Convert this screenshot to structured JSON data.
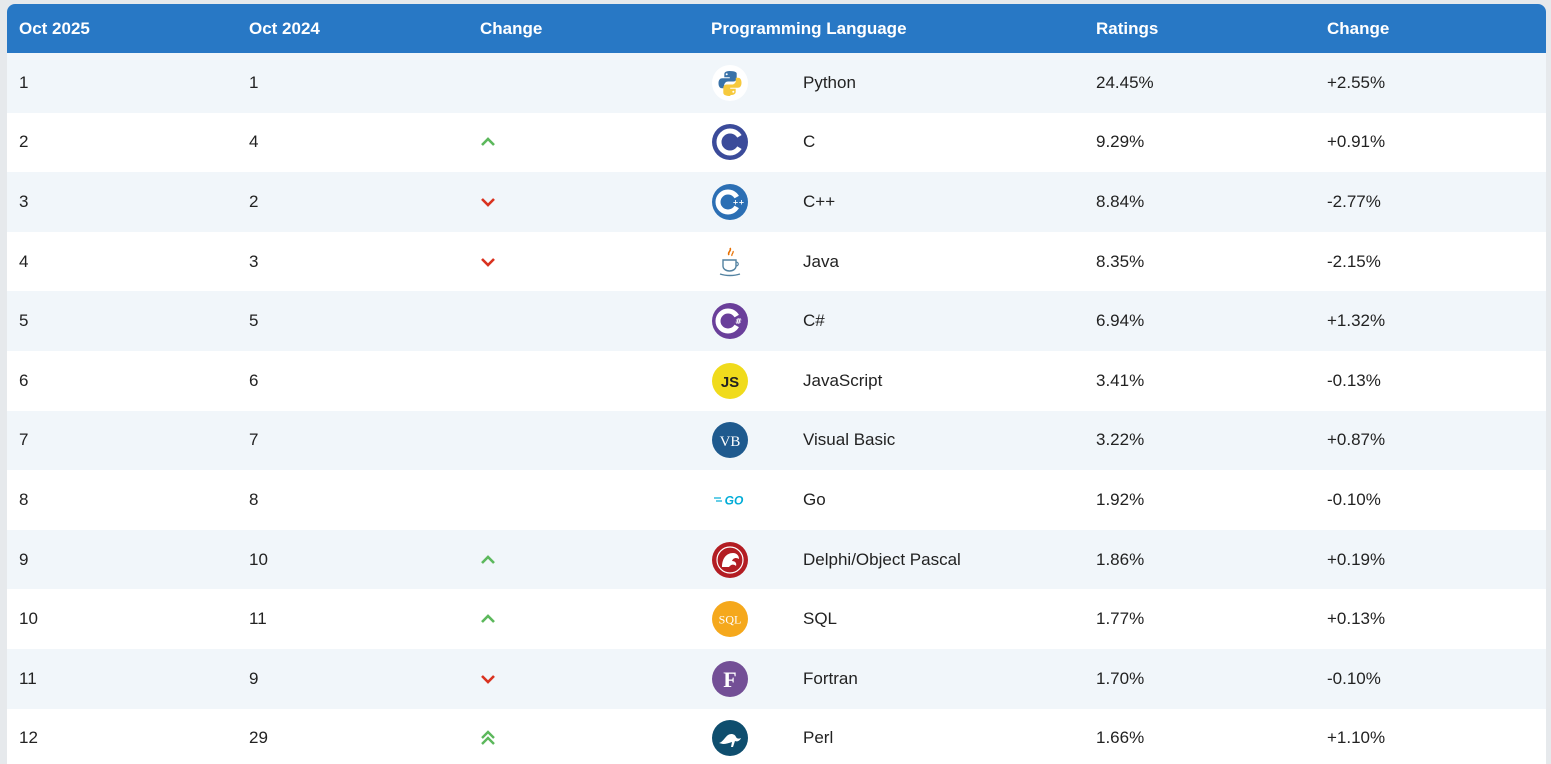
{
  "header": {
    "col_oct2025": "Oct 2025",
    "col_oct2024": "Oct 2024",
    "col_change": "Change",
    "col_language": "Programming Language",
    "col_ratings": "Ratings",
    "col_change2": "Change"
  },
  "colors": {
    "header_bg": "#2878c5",
    "up": "#5cb85c",
    "down": "#d9321f"
  },
  "rows": [
    {
      "rank2025": "1",
      "rank2024": "1",
      "trend": "none",
      "logo": "python-logo-icon",
      "language": "Python",
      "rating": "24.45%",
      "change": "+2.55%"
    },
    {
      "rank2025": "2",
      "rank2024": "4",
      "trend": "up",
      "logo": "c-logo-icon",
      "language": "C",
      "rating": "9.29%",
      "change": "+0.91%"
    },
    {
      "rank2025": "3",
      "rank2024": "2",
      "trend": "down",
      "logo": "cpp-logo-icon",
      "language": "C++",
      "rating": "8.84%",
      "change": "-2.77%"
    },
    {
      "rank2025": "4",
      "rank2024": "3",
      "trend": "down",
      "logo": "java-logo-icon",
      "language": "Java",
      "rating": "8.35%",
      "change": "-2.15%"
    },
    {
      "rank2025": "5",
      "rank2024": "5",
      "trend": "none",
      "logo": "csharp-logo-icon",
      "language": "C#",
      "rating": "6.94%",
      "change": "+1.32%"
    },
    {
      "rank2025": "6",
      "rank2024": "6",
      "trend": "none",
      "logo": "javascript-logo-icon",
      "logo_text": "JS",
      "language": "JavaScript",
      "rating": "3.41%",
      "change": "-0.13%"
    },
    {
      "rank2025": "7",
      "rank2024": "7",
      "trend": "none",
      "logo": "visual-basic-logo-icon",
      "logo_text": "VB",
      "language": "Visual Basic",
      "rating": "3.22%",
      "change": "+0.87%"
    },
    {
      "rank2025": "8",
      "rank2024": "8",
      "trend": "none",
      "logo": "go-logo-icon",
      "logo_text": "GO",
      "language": "Go",
      "rating": "1.92%",
      "change": "-0.10%"
    },
    {
      "rank2025": "9",
      "rank2024": "10",
      "trend": "up",
      "logo": "delphi-logo-icon",
      "language": "Delphi/Object Pascal",
      "rating": "1.86%",
      "change": "+0.19%"
    },
    {
      "rank2025": "10",
      "rank2024": "11",
      "trend": "up",
      "logo": "sql-logo-icon",
      "logo_text": "SQL",
      "language": "SQL",
      "rating": "1.77%",
      "change": "+0.13%"
    },
    {
      "rank2025": "11",
      "rank2024": "9",
      "trend": "down",
      "logo": "fortran-logo-icon",
      "logo_text": "F",
      "language": "Fortran",
      "rating": "1.70%",
      "change": "-0.10%"
    },
    {
      "rank2025": "12",
      "rank2024": "29",
      "trend": "upup",
      "logo": "perl-logo-icon",
      "language": "Perl",
      "rating": "1.66%",
      "change": "+1.10%"
    }
  ]
}
